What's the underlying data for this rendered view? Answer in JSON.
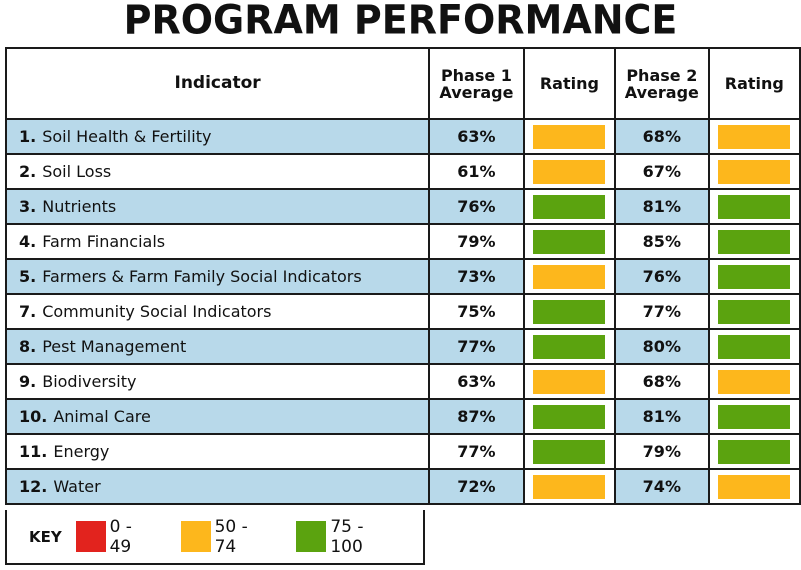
{
  "title": "PROGRAM PERFORMANCE",
  "chart_data": {
    "type": "table",
    "columns": [
      "Indicator",
      "Phase 1 Average",
      "Rating",
      "Phase 2 Average",
      "Rating"
    ],
    "rows": [
      {
        "num": "1.",
        "name": "Soil Health & Fertility",
        "p1": "63%",
        "r1": "50 - 74",
        "p2": "68%",
        "r2": "50 - 74"
      },
      {
        "num": "2.",
        "name": "Soil Loss",
        "p1": "61%",
        "r1": "50 - 74",
        "p2": "67%",
        "r2": "50 - 74"
      },
      {
        "num": "3.",
        "name": "Nutrients",
        "p1": "76%",
        "r1": "75 - 100",
        "p2": "81%",
        "r2": "75 - 100"
      },
      {
        "num": "4.",
        "name": "Farm Financials",
        "p1": "79%",
        "r1": "75 - 100",
        "p2": "85%",
        "r2": "75 - 100"
      },
      {
        "num": "5.",
        "name": "Farmers & Farm Family Social Indicators",
        "p1": "73%",
        "r1": "50 - 74",
        "p2": "76%",
        "r2": "75 - 100"
      },
      {
        "num": "7.",
        "name": "Community Social Indicators",
        "p1": "75%",
        "r1": "75 - 100",
        "p2": "77%",
        "r2": "75 - 100"
      },
      {
        "num": "8.",
        "name": "Pest Management",
        "p1": "77%",
        "r1": "75 - 100",
        "p2": "80%",
        "r2": "75 - 100"
      },
      {
        "num": "9.",
        "name": "Biodiversity",
        "p1": "63%",
        "r1": "50 - 74",
        "p2": "68%",
        "r2": "50 - 74"
      },
      {
        "num": "10.",
        "name": "Animal Care",
        "p1": "87%",
        "r1": "75 - 100",
        "p2": "81%",
        "r2": "75 - 100"
      },
      {
        "num": "11.",
        "name": "Energy",
        "p1": "77%",
        "r1": "75 - 100",
        "p2": "79%",
        "r2": "75 - 100"
      },
      {
        "num": "12.",
        "name": "Water",
        "p1": "72%",
        "r1": "50 - 74",
        "p2": "74%",
        "r2": "50 - 74"
      }
    ],
    "key": {
      "label": "KEY",
      "items": [
        {
          "range": "0 - 49",
          "color": "#e2231e"
        },
        {
          "range": "50 - 74",
          "color": "#fdb71c"
        },
        {
          "range": "75 - 100",
          "color": "#5ba30f"
        }
      ]
    },
    "row_highlight_color": "#b8d9ea"
  }
}
